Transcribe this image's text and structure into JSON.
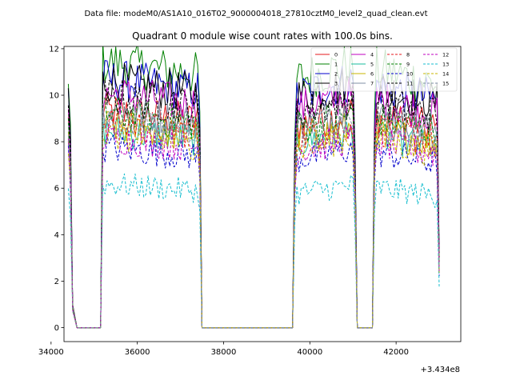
{
  "suptitle": "Data file: modeM0/AS1A10_016T02_9000004018_27810cztM0_level2_quad_clean.evt",
  "chart_data": {
    "type": "line",
    "title": "Quadrant 0 module wise count rates with 100.0s bins.",
    "xlabel": "",
    "ylabel": "",
    "x_offset_label": "+3.434e8",
    "xlim": [
      34300,
      43500
    ],
    "ylim": [
      -0.6,
      12.1
    ],
    "xticks": [
      34000,
      36000,
      38000,
      40000,
      42000
    ],
    "xtick_labels": [
      "34000",
      "36000",
      "38000",
      "40000",
      "42000"
    ],
    "yticks": [
      0,
      2,
      4,
      6,
      8,
      10,
      12
    ],
    "ytick_labels": [
      "0",
      "2",
      "4",
      "6",
      "8",
      "10",
      "12"
    ],
    "legend_position": "top-right",
    "legend_columns": 4,
    "segments": [
      {
        "x_start": 35200,
        "x_end": 37500,
        "ramp_in": [
          34400,
          34500,
          34600
        ],
        "drop_to_zero": 37500
      },
      {
        "x_start": 39600,
        "x_end": 41100,
        "drop_to_zero": 41100
      },
      {
        "x_start": 41500,
        "x_end": 43000
      }
    ],
    "series": [
      {
        "name": "0",
        "color": "#e41a1c",
        "dash": "solid",
        "level": 8.9
      },
      {
        "name": "1",
        "color": "#008000",
        "dash": "solid",
        "level": 10.9
      },
      {
        "name": "2",
        "color": "#0000cc",
        "dash": "solid",
        "level": 10.2
      },
      {
        "name": "3",
        "color": "#000000",
        "dash": "solid",
        "level": 10.1
      },
      {
        "name": "4",
        "color": "#c000c0",
        "dash": "solid",
        "level": 9.6
      },
      {
        "name": "5",
        "color": "#1abc9c",
        "dash": "solid",
        "level": 8.1
      },
      {
        "name": "6",
        "color": "#c8b400",
        "dash": "solid",
        "level": 8.3
      },
      {
        "name": "7",
        "color": "#7f8fa6",
        "dash": "solid",
        "level": 8.9
      },
      {
        "name": "8",
        "color": "#e41a1c",
        "dash": "dashed",
        "level": 8.4
      },
      {
        "name": "9",
        "color": "#008000",
        "dash": "dashed",
        "level": 8.8
      },
      {
        "name": "10",
        "color": "#0000cc",
        "dash": "dashed",
        "level": 7.4
      },
      {
        "name": "11",
        "color": "#000000",
        "dash": "dashed",
        "level": 9.5
      },
      {
        "name": "12",
        "color": "#c000c0",
        "dash": "dashed",
        "level": 7.8
      },
      {
        "name": "13",
        "color": "#17becf",
        "dash": "dashed",
        "level": 5.9
      },
      {
        "name": "14",
        "color": "#c8b400",
        "dash": "dashed",
        "level": 7.9
      },
      {
        "name": "15",
        "color": "#7f8fa6",
        "dash": "dashed",
        "level": 8.6
      }
    ]
  }
}
